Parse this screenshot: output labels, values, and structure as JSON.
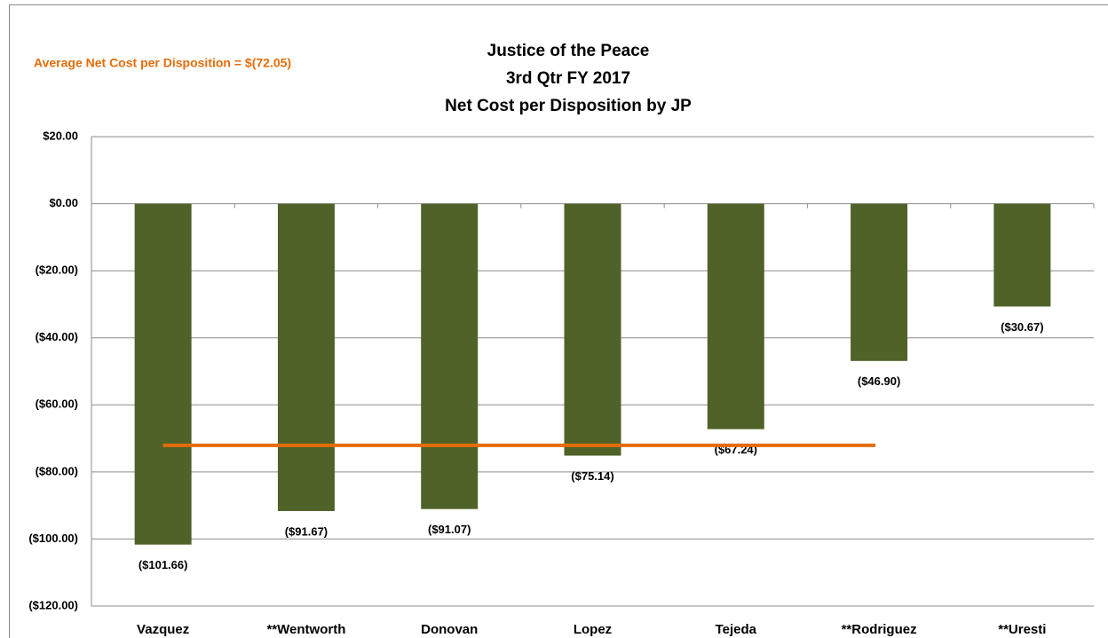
{
  "chart_data": {
    "type": "bar",
    "title": [
      "Justice of the Peace",
      "3rd Qtr FY 2017",
      "Net Cost per Disposition by JP"
    ],
    "categories": [
      "Vazquez",
      "**Wentworth",
      "Donovan",
      "Lopez",
      "Tejeda",
      "**Rodriguez",
      "**Uresti"
    ],
    "values": [
      -101.66,
      -91.67,
      -91.07,
      -75.14,
      -67.24,
      -46.9,
      -30.67
    ],
    "value_labels": [
      "($101.66)",
      "($91.67)",
      "($91.07)",
      "($75.14)",
      "($67.24)",
      "($46.90)",
      "($30.67)"
    ],
    "color": "#4f6228",
    "average": {
      "value": -72.05,
      "label": "Average Net Cost per Disposition = $(72.05)",
      "color": "#e46c0a"
    },
    "ylim": [
      -120,
      20
    ],
    "yticks": [
      {
        "value": 20,
        "label": "$20.00"
      },
      {
        "value": 0,
        "label": "$0.00"
      },
      {
        "value": -20,
        "label": "($20.00)"
      },
      {
        "value": -40,
        "label": "($40.00)"
      },
      {
        "value": -60,
        "label": "($60.00)"
      },
      {
        "value": -80,
        "label": "($80.00)"
      },
      {
        "value": -100,
        "label": "($100.00)"
      },
      {
        "value": -120,
        "label": "($120.00)"
      }
    ],
    "grid": true
  }
}
